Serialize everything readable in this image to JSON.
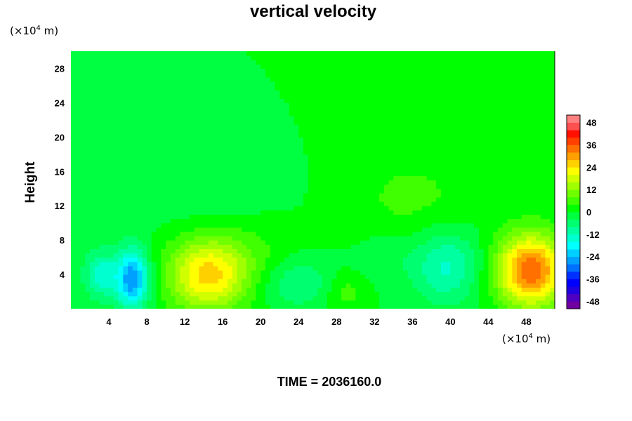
{
  "chart_data": {
    "type": "heatmap",
    "title": "vertical velocity",
    "ylabel": "Height",
    "xlabel": "",
    "x_unit": {
      "prefix": "(×10",
      "exp": "4",
      "suffix": " m)"
    },
    "y_unit": {
      "prefix": "(×10",
      "exp": "4",
      "suffix": " m)"
    },
    "xlim": [
      0,
      51
    ],
    "ylim": [
      0,
      30
    ],
    "x_ticks": [
      4,
      8,
      12,
      16,
      20,
      24,
      28,
      32,
      36,
      40,
      44,
      48
    ],
    "y_ticks": [
      4,
      8,
      12,
      16,
      20,
      24,
      28
    ],
    "colorbar": {
      "range": [
        -52,
        52
      ],
      "step": 4,
      "ticks": [
        48,
        36,
        24,
        12,
        0,
        -12,
        -24,
        -36,
        -48
      ],
      "colors": [
        "#7000a0",
        "#5000c0",
        "#2000e0",
        "#0000ff",
        "#0030ff",
        "#0070ff",
        "#00a0ff",
        "#00d0ff",
        "#00ffff",
        "#00ffd0",
        "#00ffa0",
        "#00ff70",
        "#00ff40",
        "#00ff00",
        "#40ff00",
        "#70ff00",
        "#a0ff00",
        "#d0ff00",
        "#ffff00",
        "#ffd000",
        "#ffa000",
        "#ff7000",
        "#ff4000",
        "#ff1000",
        "#ff5050",
        "#ff8080"
      ]
    },
    "field_features": [
      {
        "x": 6.5,
        "y": 3.5,
        "sx": 1.2,
        "sy": 2.5,
        "amp": -28
      },
      {
        "x": 3.2,
        "y": 4.0,
        "sx": 1.3,
        "sy": 2.0,
        "amp": -14
      },
      {
        "x": 14.5,
        "y": 4.0,
        "sx": 3.0,
        "sy": 3.0,
        "amp": 26
      },
      {
        "x": 24.0,
        "y": 3.0,
        "sx": 2.5,
        "sy": 2.0,
        "amp": -8
      },
      {
        "x": 29.0,
        "y": 2.0,
        "sx": 1.5,
        "sy": 1.5,
        "amp": 6
      },
      {
        "x": 39.5,
        "y": 5.0,
        "sx": 2.5,
        "sy": 3.0,
        "amp": -13
      },
      {
        "x": 48.5,
        "y": 4.5,
        "sx": 2.5,
        "sy": 3.0,
        "amp": 36
      },
      {
        "x": 36.0,
        "y": 13.0,
        "sx": 5.0,
        "sy": 4.0,
        "amp": 5
      },
      {
        "x": 13.0,
        "y": 14.0,
        "sx": 6.0,
        "sy": 3.0,
        "amp": -3
      },
      {
        "x": 20.0,
        "y": 7.0,
        "sx": 3.0,
        "sy": 2.5,
        "amp": 3
      },
      {
        "x": 33.0,
        "y": 6.0,
        "sx": 2.0,
        "sy": 2.0,
        "amp": -4
      }
    ],
    "grid": false
  },
  "footer": {
    "time_label": "TIME = 2036160.0"
  }
}
